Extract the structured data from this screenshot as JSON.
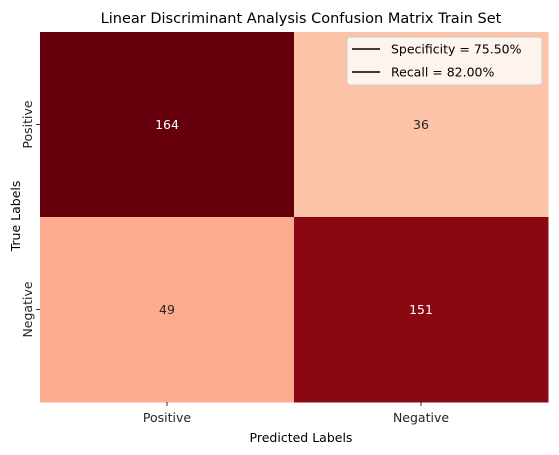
{
  "chart_data": {
    "type": "heatmap",
    "title": "Linear Discriminant Analysis Confusion Matrix Train Set",
    "xlabel": "Predicted Labels",
    "ylabel": "True Labels",
    "x_categories": [
      "Positive",
      "Negative"
    ],
    "y_categories": [
      "Positive",
      "Negative"
    ],
    "values": [
      [
        164,
        36
      ],
      [
        49,
        151
      ]
    ],
    "colormap": "Reds",
    "colorbar": false,
    "cell_colors": [
      [
        "#67000d",
        "#fcc3a9"
      ],
      [
        "#fcab8f",
        "#8a0812"
      ]
    ],
    "cell_text_colors": [
      [
        "#ffffff",
        "#262626"
      ],
      [
        "#262626",
        "#ffffff"
      ]
    ],
    "legend": {
      "placement": "top-right",
      "entries": [
        "Specificity = 75.50%",
        "Recall = 82.00%"
      ],
      "line_color": "#000000"
    }
  }
}
